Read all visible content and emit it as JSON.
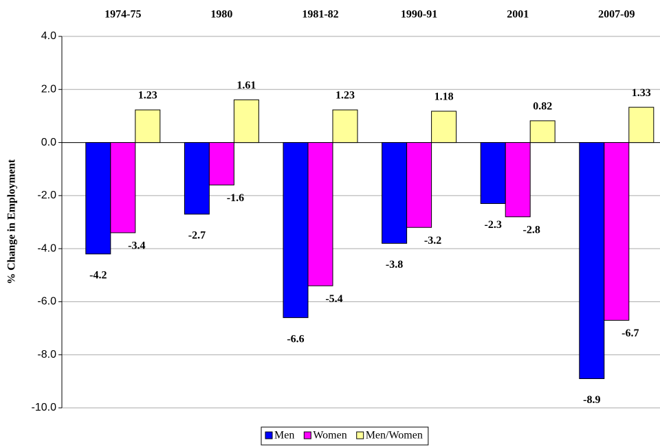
{
  "chart_data": {
    "type": "bar",
    "y_label": "% Change in Employment",
    "categories": [
      "1974-75",
      "1980",
      "1981-82",
      "1990-91",
      "2001",
      "2007-09"
    ],
    "series": [
      {
        "name": "Men",
        "color": "#0000ff",
        "values": [
          -4.2,
          -2.7,
          -6.6,
          -3.8,
          -2.3,
          -8.9
        ]
      },
      {
        "name": "Women",
        "color": "#ff00ff",
        "values": [
          -3.4,
          -1.6,
          -5.4,
          -3.2,
          -2.8,
          -6.7
        ]
      },
      {
        "name": "Men/Women",
        "color": "#ffff99",
        "values": [
          1.23,
          1.61,
          1.23,
          1.18,
          0.82,
          1.33
        ]
      }
    ],
    "ylim": [
      -10,
      4
    ],
    "yticks": [
      {
        "value": -10,
        "label": "-10.0"
      },
      {
        "value": -8,
        "label": "-8.0"
      },
      {
        "value": -6,
        "label": "-6.0"
      },
      {
        "value": -4,
        "label": "-4.0"
      },
      {
        "value": -2,
        "label": "-2.0"
      },
      {
        "value": 0,
        "label": "0.0"
      },
      {
        "value": 2,
        "label": "2.0"
      },
      {
        "value": 4,
        "label": "4.0"
      }
    ],
    "grid": true,
    "legend": "bottom"
  }
}
